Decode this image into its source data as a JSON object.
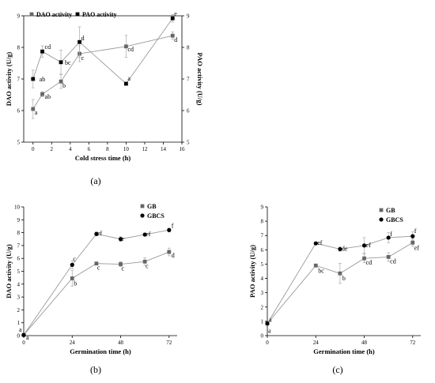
{
  "chart_data": [
    {
      "type": "line",
      "caption": "(a)",
      "xlabel": "Cold stress time (h)",
      "ylabel": "DAO activity (U/g)",
      "y2label": "PAO activity (U/g)",
      "xlim": [
        -1,
        16
      ],
      "ylim": [
        5,
        9
      ],
      "y2lim": [
        5,
        9
      ],
      "xticks": [
        "0",
        "2",
        "4",
        "6",
        "8",
        "10",
        "12",
        "14",
        "16"
      ],
      "yticks": [
        "5",
        "6",
        "7",
        "8",
        "9"
      ],
      "y2ticks": [
        "5",
        "6",
        "7",
        "8",
        "9"
      ],
      "legend_position": "top-left",
      "series": [
        {
          "name": "DAO activity",
          "marker": "square",
          "color": "#666666",
          "x": [
            0,
            1,
            3,
            5,
            10,
            15
          ],
          "y": [
            6.05,
            6.52,
            6.92,
            7.8,
            8.03,
            8.37
          ],
          "err": [
            0.3,
            0.08,
            0.22,
            0.25,
            0.35,
            0.12
          ],
          "labels": [
            "a",
            "ab",
            "b",
            "c",
            "cd",
            "d"
          ]
        },
        {
          "name": "PAO activity",
          "marker": "square",
          "color": "#000000",
          "x": [
            0,
            1,
            3,
            5,
            10,
            15
          ],
          "y": [
            7.0,
            7.87,
            7.53,
            8.17,
            6.85,
            8.92
          ],
          "err": [
            0.28,
            0.18,
            0.38,
            0.48,
            0.05,
            0.12
          ],
          "labels": [
            "ab",
            "cd",
            "bc",
            "d",
            "a",
            "e"
          ]
        }
      ]
    },
    {
      "type": "line",
      "caption": "(b)",
      "xlabel": "Germination time (h)",
      "ylabel": "DAO activity (U/g)",
      "xlim": [
        0,
        76
      ],
      "ylim": [
        0,
        10
      ],
      "xticks": [
        "0",
        "24",
        "48",
        "72"
      ],
      "yticks": [
        "0",
        "1",
        "2",
        "3",
        "4",
        "5",
        "6",
        "7",
        "8",
        "9",
        "10"
      ],
      "legend_position": "top-right",
      "series": [
        {
          "name": "GB",
          "marker": "square",
          "color": "#666666",
          "x": [
            0,
            24,
            36,
            48,
            60,
            72
          ],
          "y": [
            0.05,
            4.45,
            5.6,
            5.55,
            5.75,
            6.5
          ],
          "err": [
            0,
            0.6,
            0.12,
            0.2,
            0.3,
            0.3
          ],
          "labels": [
            "a",
            "b",
            "c",
            "c",
            "c",
            "d"
          ]
        },
        {
          "name": "GBCS",
          "marker": "circle",
          "color": "#000000",
          "x": [
            0,
            24,
            36,
            48,
            60,
            72
          ],
          "y": [
            0.05,
            5.5,
            7.9,
            7.5,
            7.85,
            8.2
          ],
          "err": [
            0,
            0.3,
            0.15,
            0.18,
            0.12,
            0.15
          ],
          "labels": [
            "a",
            "c",
            "ef",
            "e",
            "ef",
            "f"
          ]
        }
      ]
    },
    {
      "type": "line",
      "caption": "(c)",
      "xlabel": "Germination time (h)",
      "ylabel": "PAO activity (U/g)",
      "xlim": [
        0,
        76
      ],
      "ylim": [
        0,
        9
      ],
      "xticks": [
        "0",
        "24",
        "48",
        "72"
      ],
      "yticks": [
        "0",
        "1",
        "2",
        "3",
        "4",
        "5",
        "6",
        "7",
        "8",
        "9"
      ],
      "legend_position": "top-right",
      "series": [
        {
          "name": "GB",
          "marker": "square",
          "color": "#666666",
          "x": [
            0,
            24,
            36,
            48,
            60,
            72
          ],
          "y": [
            0.85,
            4.9,
            4.35,
            5.4,
            5.5,
            6.5
          ],
          "err": [
            0,
            0.1,
            0.7,
            0.3,
            0.3,
            0.25
          ],
          "labels": [
            "a",
            "bc",
            "b",
            "cd",
            "cd",
            "ef"
          ]
        },
        {
          "name": "GBCS",
          "marker": "circle",
          "color": "#000000",
          "x": [
            0,
            24,
            36,
            48,
            60,
            72
          ],
          "y": [
            0.85,
            6.45,
            6.05,
            6.3,
            6.85,
            6.95
          ],
          "err": [
            0,
            0.1,
            0.15,
            0.55,
            0.35,
            0.3
          ],
          "labels": [
            "a",
            "ef",
            "de",
            "ef",
            "f",
            "f"
          ]
        }
      ]
    }
  ]
}
